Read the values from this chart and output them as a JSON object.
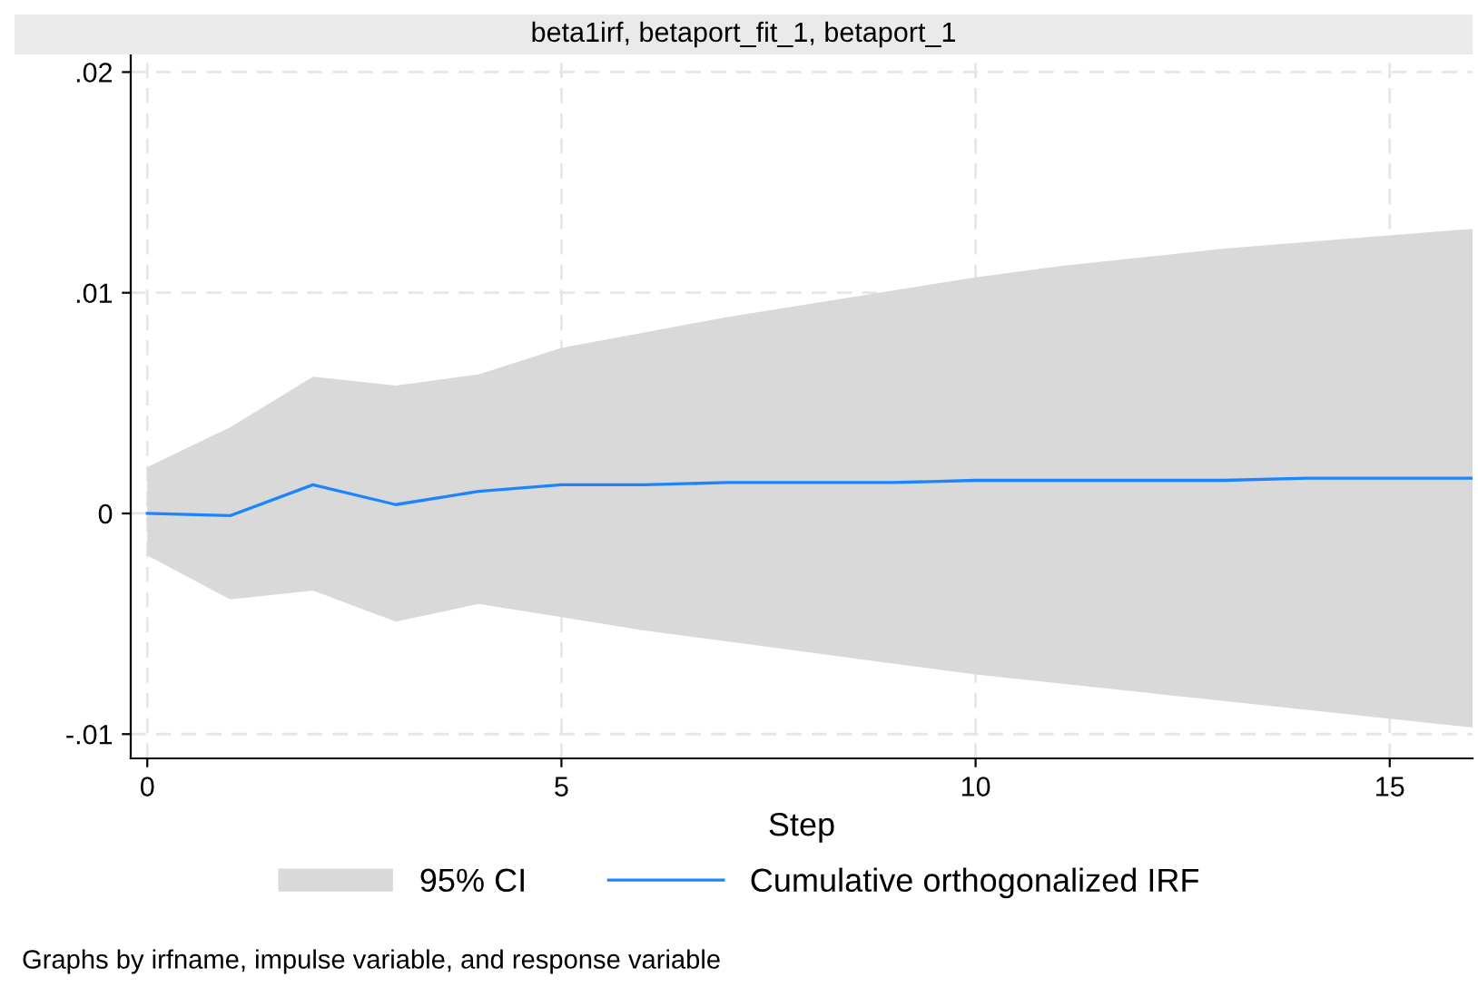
{
  "chart_data": {
    "type": "line",
    "title": "beta1irf, betaport_fit_1, betaport_1",
    "xlabel": "Step",
    "x": [
      0,
      1,
      2,
      3,
      4,
      5,
      6,
      7,
      8,
      9,
      10,
      11,
      12,
      13,
      14,
      15,
      16
    ],
    "series": [
      {
        "name": "Cumulative orthogonalized IRF",
        "color": "#1a85ff",
        "values": [
          0.0,
          -0.0001,
          0.0013,
          0.0004,
          0.001,
          0.0013,
          0.0013,
          0.0014,
          0.0014,
          0.0014,
          0.0015,
          0.0015,
          0.0015,
          0.0015,
          0.0016,
          0.0016,
          0.0016
        ],
        "lower": [
          -0.0019,
          -0.0039,
          -0.0035,
          -0.0049,
          -0.0041,
          -0.0047,
          -0.0053,
          -0.0058,
          -0.0063,
          -0.0068,
          -0.0073,
          -0.0077,
          -0.0081,
          -0.0085,
          -0.0089,
          -0.0093,
          -0.0097
        ],
        "upper": [
          0.0021,
          0.0039,
          0.0062,
          0.0058,
          0.0063,
          0.0075,
          0.0082,
          0.0089,
          0.0095,
          0.0101,
          0.0107,
          0.0112,
          0.0116,
          0.012,
          0.0123,
          0.0126,
          0.0129
        ]
      }
    ],
    "xlim": [
      -0.2,
      16
    ],
    "xticks": [
      0,
      5,
      10,
      15
    ],
    "ylim": [
      -0.0111,
      0.0208
    ],
    "yticks": [
      {
        "value": 0.02,
        "label": ".02"
      },
      {
        "value": 0.01,
        "label": ".01"
      },
      0,
      {
        "value": -0.01,
        "label": "-.01"
      }
    ],
    "grid": true,
    "legend": "bottom",
    "line_style": "solid",
    "marker": "none",
    "annotations": [
      "95% CI",
      "Graphs by irfname, impulse variable, and response variable"
    ]
  }
}
